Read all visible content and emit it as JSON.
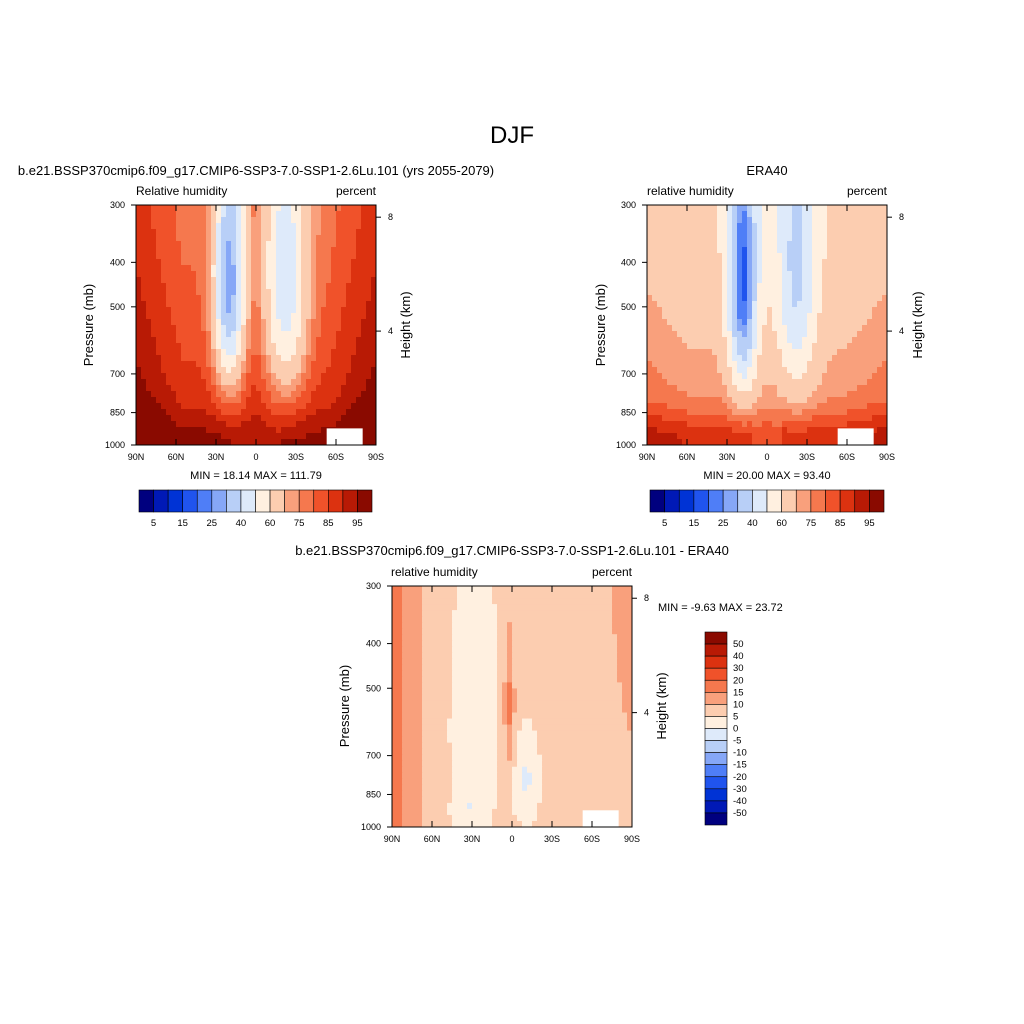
{
  "figure_title": "DJF",
  "colors": {
    "abs_scale": [
      "#00007f",
      "#0019b6",
      "#0033d5",
      "#2054ee",
      "#4f7ef7",
      "#86a7f7",
      "#b8cff7",
      "#deeafa",
      "#fff0e0",
      "#fccdb0",
      "#f9a07c",
      "#f5784e",
      "#f0522a",
      "#dc3210",
      "#b81a05",
      "#8a0a00"
    ],
    "diff_scale": [
      "#00007f",
      "#0019b6",
      "#0033d5",
      "#2054ee",
      "#4f7ef7",
      "#86a7f7",
      "#b8cff7",
      "#deeafa",
      "#fff0e0",
      "#fccdb0",
      "#f9a07c",
      "#f5784e",
      "#f0522a",
      "#dc3210",
      "#b81a05",
      "#8a0a00"
    ]
  },
  "chart_data": [
    {
      "type": "heatmap",
      "title": "b.e21.BSSP370cmip6.f09_g17.CMIP6-SSP3-7.0-SSP1-2.6Lu.101 (yrs 2055-2079)",
      "left_string": "Relative humidity",
      "right_string": "percent",
      "ylabel": "Pressure (mb)",
      "ylabel_right": "Height (km)",
      "x_ticks": [
        "90N",
        "60N",
        "30N",
        "0",
        "30S",
        "60S",
        "90S"
      ],
      "y_ticks": [
        "300",
        "400",
        "500",
        "700",
        "850",
        "1000"
      ],
      "y_ticks_right": [
        "8",
        "4"
      ],
      "x": [
        90,
        -90
      ],
      "y": [
        300,
        1000
      ],
      "min": 18.14,
      "max": 111.79,
      "stats_text": "MIN =  18.14  MAX = 111.79",
      "colorbar_labels": [
        "5",
        "15",
        "25",
        "40",
        "60",
        "75",
        "85",
        "95"
      ]
    },
    {
      "type": "heatmap",
      "title": "ERA40",
      "left_string": "relative humidity",
      "right_string": "percent",
      "ylabel": "Pressure (mb)",
      "ylabel_right": "Height (km)",
      "x_ticks": [
        "90N",
        "60N",
        "30N",
        "0",
        "30S",
        "60S",
        "90S"
      ],
      "y_ticks": [
        "300",
        "400",
        "500",
        "700",
        "850",
        "1000"
      ],
      "y_ticks_right": [
        "8",
        "4"
      ],
      "x": [
        90,
        -90
      ],
      "y": [
        300,
        1000
      ],
      "min": 20.0,
      "max": 93.4,
      "stats_text": "MIN =  20.00  MAX =  93.40",
      "colorbar_labels": [
        "5",
        "15",
        "25",
        "40",
        "60",
        "75",
        "85",
        "95"
      ]
    },
    {
      "type": "heatmap",
      "title": "b.e21.BSSP370cmip6.f09_g17.CMIP6-SSP3-7.0-SSP1-2.6Lu.101 - ERA40",
      "left_string": "relative humidity",
      "right_string": "percent",
      "ylabel": "Pressure (mb)",
      "ylabel_right": "Height (km)",
      "x_ticks": [
        "90N",
        "60N",
        "30N",
        "0",
        "30S",
        "60S",
        "90S"
      ],
      "y_ticks": [
        "300",
        "400",
        "500",
        "700",
        "850",
        "1000"
      ],
      "y_ticks_right": [
        "8",
        "4"
      ],
      "x": [
        90,
        -90
      ],
      "y": [
        300,
        1000
      ],
      "min": -9.63,
      "max": 23.72,
      "stats_text": "MIN =  -9.63  MAX =  23.72",
      "colorbar_labels": [
        "50",
        "40",
        "30",
        "20",
        "15",
        "10",
        "5",
        "0",
        "-5",
        "-10",
        "-15",
        "-20",
        "-30",
        "-40",
        "-50"
      ]
    }
  ]
}
